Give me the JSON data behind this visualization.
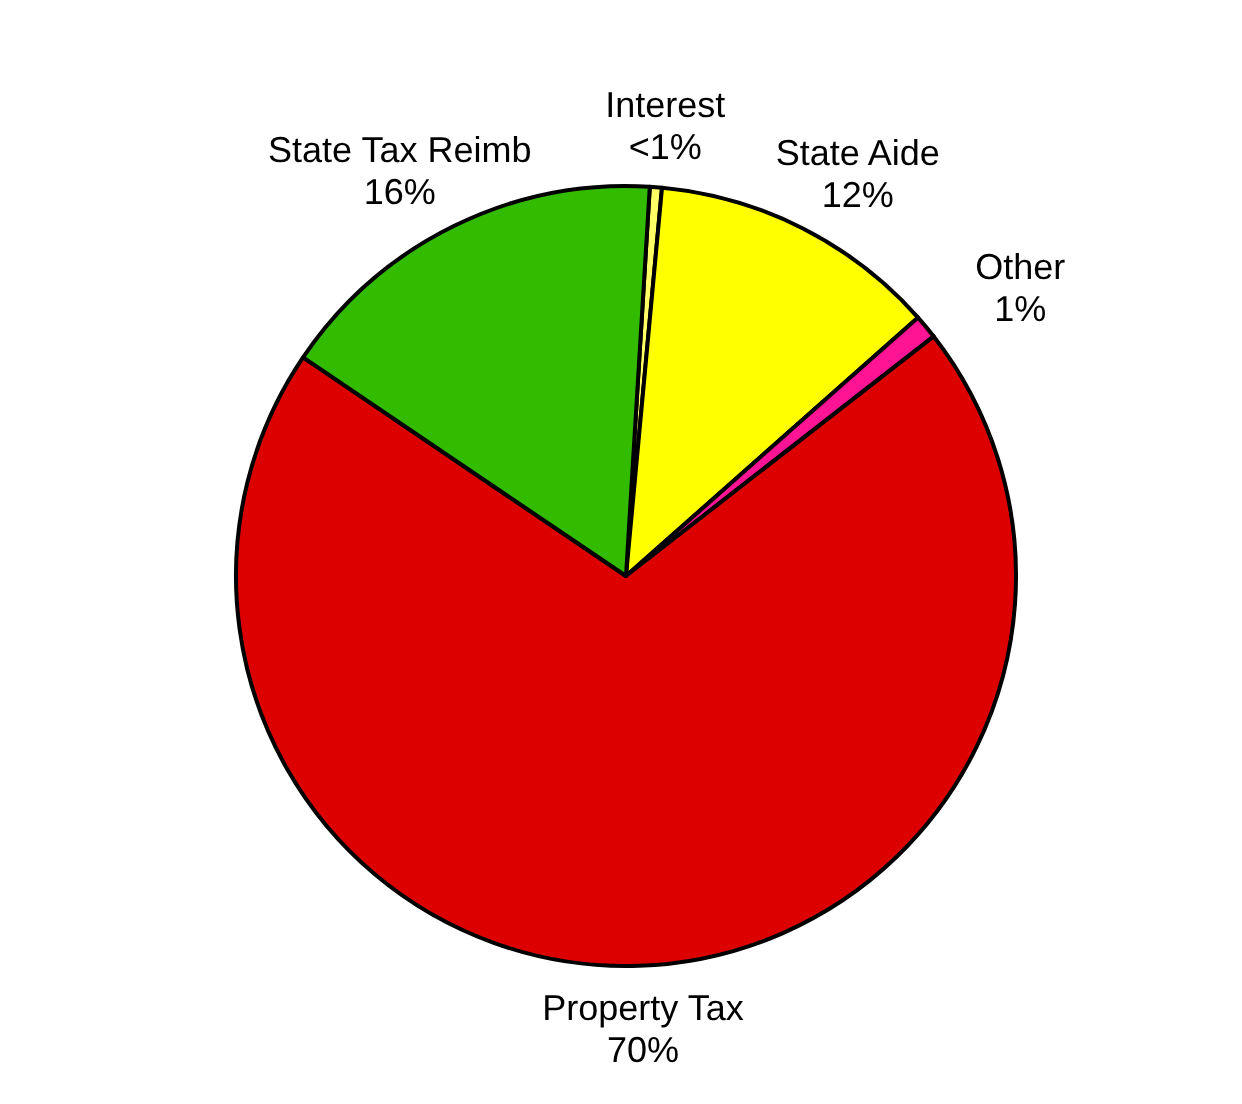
{
  "chart_data": {
    "type": "pie",
    "categories": [
      "Interest",
      "State Aide",
      "Other",
      "Property Tax",
      "State Tax Reimb"
    ],
    "values": [
      0.5,
      12,
      1,
      70,
      16.5
    ],
    "value_labels": [
      "<1%",
      "12%",
      "1%",
      "70%",
      "16%"
    ],
    "colors": [
      "#ffff66",
      "#ffff00",
      "#ff1493",
      "#dd0000",
      "#33bb00"
    ]
  }
}
